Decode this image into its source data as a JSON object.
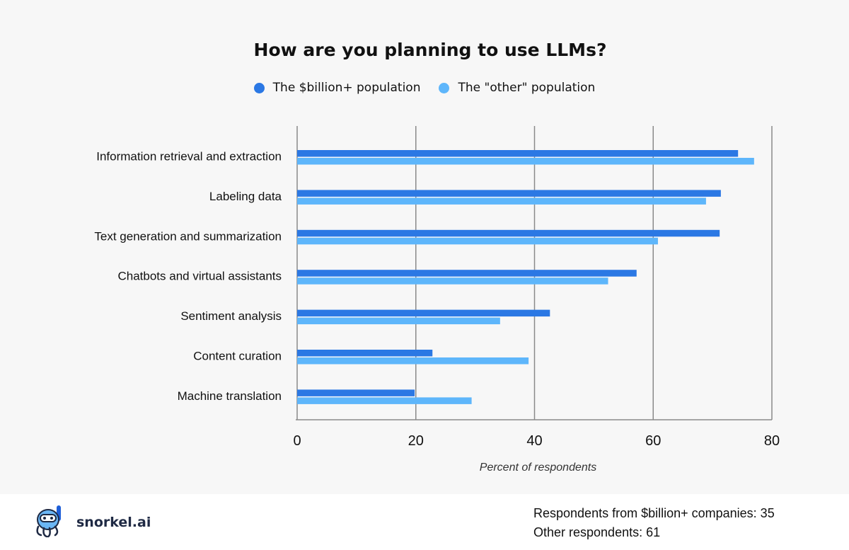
{
  "colors": {
    "billion": "#2b78e4",
    "other": "#5eb6fb",
    "grid": "#8a8a8a"
  },
  "chart_data": {
    "type": "bar",
    "orientation": "horizontal",
    "title": "How are you planning to use LLMs?",
    "xlabel": "Percent of respondents",
    "ylabel": "",
    "xlim": [
      0,
      80
    ],
    "xticks": [
      0,
      20,
      40,
      60,
      80
    ],
    "grid": true,
    "legend_position": "top-center",
    "categories": [
      "Information retrieval and extraction",
      "Labeling data",
      "Text generation and summarization",
      "Chatbots and virtual assistants",
      "Sentiment analysis",
      "Content curation",
      "Machine translation"
    ],
    "series": [
      {
        "name": "The $billion+ population",
        "color": "#2b78e4",
        "values": [
          74.3,
          71.4,
          71.2,
          57.2,
          42.6,
          22.8,
          19.8
        ]
      },
      {
        "name": "The \"other\" population",
        "color": "#5eb6fb",
        "values": [
          77.0,
          68.9,
          60.8,
          52.4,
          34.2,
          39.0,
          29.4
        ]
      }
    ]
  },
  "footer": {
    "brand": "snorkel.ai",
    "notes": [
      "Respondents from $billion+ companies: 35",
      "Other respondents: 61"
    ]
  }
}
